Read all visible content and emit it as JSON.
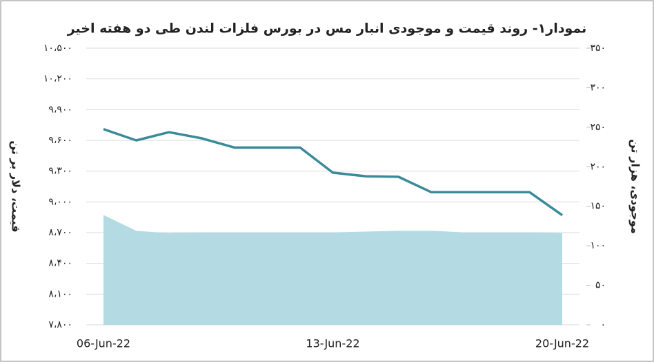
{
  "chart_data": {
    "type": "line-area",
    "title": "نمودار۱- روند قیمت و موجودی انبار مس در بورس فلزات لندن طی دو هفته اخیر",
    "y_label": "قیمت، دلار بر تن",
    "y2_label": "موجودی، هزار تن",
    "categories": [
      "06-Jun-22",
      null,
      null,
      null,
      null,
      null,
      null,
      "13-Jun-22",
      null,
      null,
      null,
      null,
      null,
      null,
      "20-Jun-22"
    ],
    "series": [
      {
        "type": "line",
        "color": "#3a8a9a",
        "values": [
          9710,
          9600,
          9680,
          9620,
          9530,
          9530,
          9530,
          9285,
          9250,
          9245,
          9095,
          9095,
          9095,
          9095,
          8870
        ]
      },
      {
        "type": "area",
        "axis": "y2",
        "color": "#b4dbe4",
        "values": [
          139,
          119,
          116,
          117,
          117,
          117,
          117,
          117,
          118,
          119,
          119,
          117,
          117,
          117,
          116
        ]
      }
    ],
    "ylim": [
      7800,
      10500
    ],
    "yticks": [
      {
        "value": 7800,
        "label": "۷،۸۰۰"
      },
      {
        "value": 8100,
        "label": "۸،۱۰۰"
      },
      {
        "value": 8400,
        "label": "۸،۴۰۰"
      },
      {
        "value": 8700,
        "label": "۸،۷۰۰"
      },
      {
        "value": 9000,
        "label": "۹،۰۰۰"
      },
      {
        "value": 9300,
        "label": "۹،۳۰۰"
      },
      {
        "value": 9600,
        "label": "۹،۶۰۰"
      },
      {
        "value": 9900,
        "label": "۹،۹۰۰"
      },
      {
        "value": 10200,
        "label": "۱۰،۲۰۰"
      },
      {
        "value": 10500,
        "label": "۱۰،۵۰۰"
      }
    ],
    "y2lim": [
      0,
      350
    ],
    "y2ticks": [
      {
        "value": 0,
        "label": "۰"
      },
      {
        "value": 50,
        "label": "۵۰"
      },
      {
        "value": 100,
        "label": "۱۰۰"
      },
      {
        "value": 150,
        "label": "۱۵۰"
      },
      {
        "value": 200,
        "label": "۲۰۰"
      },
      {
        "value": 250,
        "label": "۲۵۰"
      },
      {
        "value": 300,
        "label": "۳۰۰"
      },
      {
        "value": 350,
        "label": "۳۵۰"
      }
    ],
    "grid": true
  }
}
